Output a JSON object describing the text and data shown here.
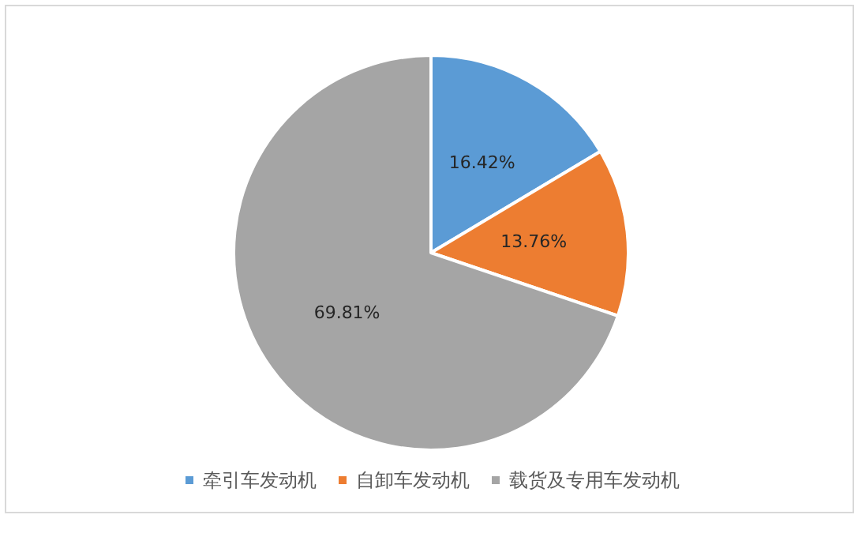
{
  "chart_data": {
    "type": "pie",
    "categories": [
      "牵引车发动机",
      "自卸车发动机",
      "载货及专用车发动机"
    ],
    "values": [
      16.42,
      13.76,
      69.81
    ],
    "colors": [
      "#5b9bd5",
      "#ed7d31",
      "#a5a5a5"
    ],
    "value_labels": [
      "16.42%",
      "13.76%",
      "69.81%"
    ],
    "legend": "bottom"
  }
}
